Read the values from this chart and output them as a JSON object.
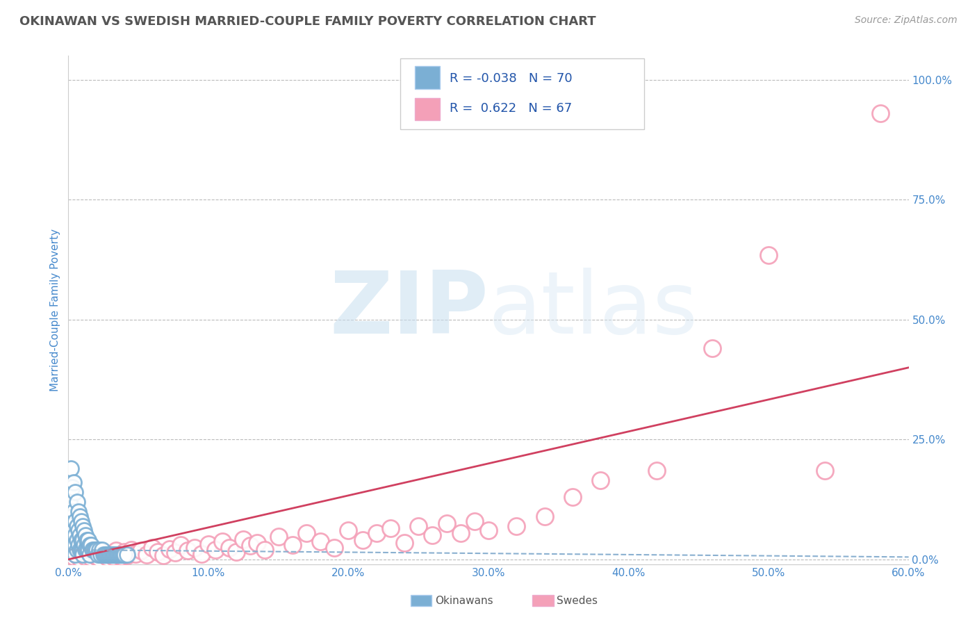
{
  "title": "OKINAWAN VS SWEDISH MARRIED-COUPLE FAMILY POVERTY CORRELATION CHART",
  "source_text": "Source: ZipAtlas.com",
  "ylabel": "Married-Couple Family Poverty",
  "xlim": [
    0.0,
    0.6
  ],
  "ylim": [
    -0.01,
    1.05
  ],
  "xtick_labels": [
    "0.0%",
    "10.0%",
    "20.0%",
    "30.0%",
    "40.0%",
    "50.0%",
    "60.0%"
  ],
  "xtick_vals": [
    0.0,
    0.1,
    0.2,
    0.3,
    0.4,
    0.5,
    0.6
  ],
  "ytick_labels": [
    "100.0%",
    "75.0%",
    "50.0%",
    "25.0%",
    "0.0%"
  ],
  "ytick_vals": [
    1.0,
    0.75,
    0.5,
    0.25,
    0.0
  ],
  "okinawan_color": "#7bafd4",
  "okinawan_edge": "#5590c0",
  "swedish_color": "#f4a0b8",
  "swedish_edge": "#e07090",
  "okinawan_R": -0.038,
  "okinawan_N": 70,
  "swedish_R": 0.622,
  "swedish_N": 67,
  "legend_R_color": "#2255aa",
  "watermark_text": "ZIPatlas",
  "background_color": "#ffffff",
  "grid_color": "#bbbbbb",
  "title_color": "#555555",
  "axis_label_color": "#4488cc",
  "okinawan_scatter_x": [
    0.001,
    0.002,
    0.002,
    0.002,
    0.003,
    0.003,
    0.003,
    0.003,
    0.004,
    0.004,
    0.004,
    0.004,
    0.005,
    0.005,
    0.005,
    0.005,
    0.005,
    0.006,
    0.006,
    0.006,
    0.006,
    0.007,
    0.007,
    0.007,
    0.008,
    0.008,
    0.008,
    0.009,
    0.009,
    0.009,
    0.01,
    0.01,
    0.01,
    0.01,
    0.011,
    0.011,
    0.012,
    0.012,
    0.013,
    0.013,
    0.014,
    0.014,
    0.015,
    0.015,
    0.016,
    0.017,
    0.018,
    0.019,
    0.02,
    0.021,
    0.022,
    0.023,
    0.024,
    0.025,
    0.026,
    0.027,
    0.028,
    0.029,
    0.03,
    0.031,
    0.032,
    0.033,
    0.034,
    0.035,
    0.036,
    0.037,
    0.038,
    0.039,
    0.04,
    0.042
  ],
  "okinawan_scatter_y": [
    0.12,
    0.19,
    0.08,
    0.04,
    0.15,
    0.09,
    0.05,
    0.02,
    0.16,
    0.1,
    0.06,
    0.03,
    0.14,
    0.08,
    0.05,
    0.03,
    0.01,
    0.12,
    0.07,
    0.04,
    0.02,
    0.1,
    0.06,
    0.03,
    0.09,
    0.05,
    0.02,
    0.08,
    0.04,
    0.02,
    0.07,
    0.04,
    0.02,
    0.01,
    0.06,
    0.03,
    0.05,
    0.02,
    0.04,
    0.02,
    0.04,
    0.02,
    0.03,
    0.01,
    0.03,
    0.02,
    0.02,
    0.02,
    0.02,
    0.01,
    0.02,
    0.01,
    0.02,
    0.01,
    0.01,
    0.01,
    0.01,
    0.01,
    0.01,
    0.01,
    0.01,
    0.01,
    0.01,
    0.01,
    0.01,
    0.01,
    0.01,
    0.01,
    0.01,
    0.01
  ],
  "swedish_scatter_x": [
    0.004,
    0.006,
    0.008,
    0.01,
    0.012,
    0.014,
    0.016,
    0.018,
    0.02,
    0.022,
    0.024,
    0.026,
    0.028,
    0.03,
    0.032,
    0.034,
    0.036,
    0.038,
    0.04,
    0.042,
    0.045,
    0.048,
    0.052,
    0.056,
    0.06,
    0.064,
    0.068,
    0.072,
    0.076,
    0.08,
    0.085,
    0.09,
    0.095,
    0.1,
    0.105,
    0.11,
    0.115,
    0.12,
    0.125,
    0.13,
    0.135,
    0.14,
    0.15,
    0.16,
    0.17,
    0.18,
    0.19,
    0.2,
    0.21,
    0.22,
    0.23,
    0.24,
    0.25,
    0.26,
    0.27,
    0.28,
    0.29,
    0.3,
    0.32,
    0.34,
    0.36,
    0.38,
    0.42,
    0.46,
    0.5,
    0.54,
    0.58
  ],
  "swedish_scatter_y": [
    0.005,
    0.008,
    0.003,
    0.01,
    0.005,
    0.012,
    0.004,
    0.01,
    0.006,
    0.003,
    0.015,
    0.008,
    0.004,
    0.012,
    0.006,
    0.018,
    0.009,
    0.005,
    0.015,
    0.008,
    0.02,
    0.012,
    0.018,
    0.01,
    0.025,
    0.015,
    0.008,
    0.022,
    0.014,
    0.03,
    0.018,
    0.025,
    0.012,
    0.032,
    0.02,
    0.038,
    0.025,
    0.015,
    0.042,
    0.028,
    0.035,
    0.02,
    0.048,
    0.03,
    0.055,
    0.038,
    0.025,
    0.06,
    0.04,
    0.055,
    0.065,
    0.035,
    0.07,
    0.05,
    0.075,
    0.055,
    0.08,
    0.06,
    0.07,
    0.09,
    0.13,
    0.165,
    0.185,
    0.44,
    0.635,
    0.185,
    0.93
  ],
  "swedish_regline_x": [
    0.0,
    0.6
  ],
  "swedish_regline_y": [
    0.0,
    0.4
  ],
  "okinawan_regline_x": [
    0.0,
    0.6
  ],
  "okinawan_regline_y": [
    0.02,
    0.005
  ]
}
